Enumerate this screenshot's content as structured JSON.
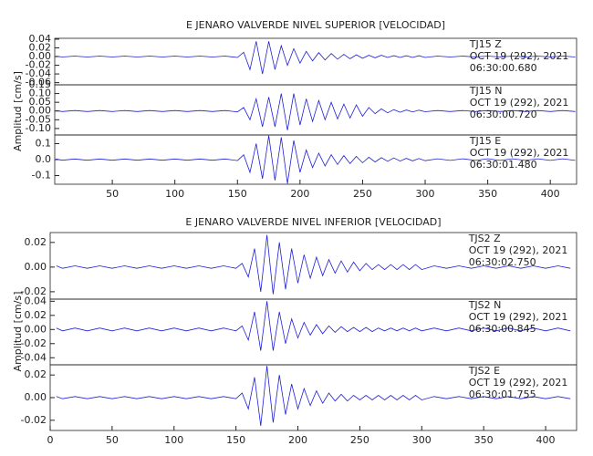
{
  "chart_data": [
    {
      "type": "line",
      "title": "E JENARO VALVERDE NIVEL SUPERIOR [VELOCIDAD]",
      "y_label": "Amplitud [cm/s]",
      "color": "#1f1fd8",
      "xlim": [
        4,
        421
      ],
      "xticks": [
        50,
        100,
        150,
        200,
        250,
        300,
        350,
        400
      ],
      "x": [
        5,
        10,
        20,
        30,
        40,
        50,
        60,
        70,
        80,
        90,
        100,
        110,
        120,
        130,
        140,
        150,
        155,
        160,
        165,
        170,
        175,
        180,
        185,
        190,
        195,
        200,
        205,
        210,
        215,
        220,
        225,
        230,
        235,
        240,
        245,
        250,
        255,
        260,
        265,
        270,
        275,
        280,
        285,
        290,
        295,
        300,
        310,
        320,
        330,
        340,
        350,
        360,
        370,
        380,
        390,
        400,
        410,
        420
      ],
      "panels": [
        {
          "station": "TJ15   Z",
          "date": "OCT 19 (292), 2021",
          "time": "06:30:00.680",
          "ylim": [
            -0.065,
            0.042
          ],
          "yticks": [
            -0.06,
            -0.04,
            -0.02,
            {
              "value": 0,
              "label": "0.00"
            },
            0.02,
            0.04
          ],
          "values": [
            0.001,
            -0.001,
            0.001,
            -0.001,
            0.001,
            -0.001,
            0.001,
            -0.001,
            0.001,
            -0.001,
            0.001,
            -0.001,
            0.001,
            -0.001,
            0.001,
            -0.002,
            0.01,
            -0.03,
            0.035,
            -0.04,
            0.035,
            -0.03,
            0.025,
            -0.02,
            0.018,
            -0.015,
            0.012,
            -0.01,
            0.009,
            -0.008,
            0.007,
            -0.006,
            0.005,
            -0.005,
            0.004,
            -0.004,
            0.003,
            -0.003,
            0.003,
            -0.002,
            0.002,
            -0.002,
            0.002,
            -0.002,
            0.002,
            -0.002,
            0.001,
            -0.001,
            0.001,
            -0.001,
            0.001,
            -0.001,
            0.001,
            -0.001,
            0.001,
            -0.001,
            0.001,
            -0.001
          ]
        },
        {
          "station": "TJ15   N",
          "date": "OCT 19 (292), 2021",
          "time": "06:30:00.720",
          "ylim": [
            -0.137,
            0.15
          ],
          "yticks": [
            {
              "value": -0.1,
              "label": "-0.10"
            },
            -0.05,
            {
              "value": 0,
              "label": "0.00"
            },
            0.05,
            {
              "value": 0.1,
              "label": "0.10"
            },
            0.15
          ],
          "values": [
            0.003,
            -0.003,
            0.003,
            -0.003,
            0.003,
            -0.003,
            0.003,
            -0.003,
            0.003,
            -0.003,
            0.003,
            -0.003,
            0.003,
            -0.003,
            0.003,
            -0.005,
            0.02,
            -0.05,
            0.07,
            -0.09,
            0.08,
            -0.09,
            0.1,
            -0.11,
            0.1,
            -0.08,
            0.07,
            -0.06,
            0.06,
            -0.05,
            0.05,
            -0.045,
            0.04,
            -0.04,
            0.035,
            -0.03,
            0.02,
            -0.015,
            0.012,
            -0.01,
            0.008,
            -0.007,
            0.006,
            -0.005,
            0.005,
            -0.004,
            0.003,
            -0.003,
            0.003,
            -0.003,
            0.003,
            -0.003,
            0.003,
            -0.003,
            0.003,
            -0.003,
            0.003,
            -0.003
          ]
        },
        {
          "station": "TJ15   E",
          "date": "OCT 19 (292), 2021",
          "time": "06:30:01.480",
          "ylim": [
            -0.154,
            0.154
          ],
          "yticks": [
            -0.1,
            {
              "value": 0,
              "label": "0.0"
            },
            0.1
          ],
          "values": [
            0.004,
            -0.004,
            0.004,
            -0.004,
            0.004,
            -0.004,
            0.004,
            -0.004,
            0.004,
            -0.004,
            0.004,
            -0.004,
            0.004,
            -0.004,
            0.004,
            -0.006,
            0.03,
            -0.08,
            0.1,
            -0.12,
            0.15,
            -0.13,
            0.14,
            -0.15,
            0.12,
            -0.08,
            0.06,
            -0.05,
            0.04,
            -0.04,
            0.03,
            -0.03,
            0.025,
            -0.025,
            0.02,
            -0.02,
            0.015,
            -0.015,
            0.012,
            -0.01,
            0.01,
            -0.009,
            0.008,
            -0.008,
            0.007,
            -0.007,
            0.005,
            -0.005,
            0.005,
            -0.005,
            0.005,
            -0.005,
            0.005,
            -0.005,
            0.005,
            -0.005,
            0.005,
            -0.005
          ]
        }
      ]
    },
    {
      "type": "line",
      "title": "E JENARO VALVERDE NIVEL INFERIOR [VELOCIDAD]",
      "y_label": "Amplitud [cm/s]",
      "color": "#1f1fd8",
      "xlim": [
        0,
        425
      ],
      "xticks": [
        0,
        50,
        100,
        150,
        200,
        250,
        300,
        350,
        400
      ],
      "x": [
        5,
        10,
        20,
        30,
        40,
        50,
        60,
        70,
        80,
        90,
        100,
        110,
        120,
        130,
        140,
        150,
        155,
        160,
        165,
        170,
        175,
        180,
        185,
        190,
        195,
        200,
        205,
        210,
        215,
        220,
        225,
        230,
        235,
        240,
        245,
        250,
        255,
        260,
        265,
        270,
        275,
        280,
        285,
        290,
        295,
        300,
        310,
        320,
        330,
        340,
        350,
        360,
        370,
        380,
        390,
        400,
        410,
        420
      ],
      "panels": [
        {
          "station": "TJS2   Z",
          "date": "OCT 19 (292), 2021",
          "time": "06:30:02.750",
          "ylim": [
            -0.026,
            0.028
          ],
          "yticks": [
            -0.02,
            {
              "value": 0,
              "label": "0.00"
            },
            0.02
          ],
          "values": [
            0.001,
            -0.001,
            0.001,
            -0.001,
            0.001,
            -0.001,
            0.001,
            -0.001,
            0.001,
            -0.001,
            0.001,
            -0.001,
            0.001,
            -0.001,
            0.001,
            -0.001,
            0.003,
            -0.008,
            0.015,
            -0.02,
            0.026,
            -0.022,
            0.02,
            -0.018,
            0.015,
            -0.013,
            0.01,
            -0.009,
            0.008,
            -0.007,
            0.006,
            -0.005,
            0.005,
            -0.004,
            0.004,
            -0.003,
            0.003,
            -0.002,
            0.002,
            -0.002,
            0.002,
            -0.002,
            0.002,
            -0.002,
            0.002,
            -0.002,
            0.001,
            -0.001,
            0.001,
            -0.001,
            0.001,
            -0.001,
            0.001,
            -0.001,
            0.001,
            -0.001,
            0.001,
            -0.001
          ]
        },
        {
          "station": "TJS2   N",
          "date": "OCT 19 (292), 2021",
          "time": "06:30:00.845",
          "ylim": [
            -0.05,
            0.043
          ],
          "yticks": [
            -0.04,
            -0.02,
            {
              "value": 0,
              "label": "0.00"
            },
            0.02,
            0.04
          ],
          "values": [
            0.002,
            -0.002,
            0.002,
            -0.002,
            0.002,
            -0.002,
            0.002,
            -0.002,
            0.002,
            -0.002,
            0.002,
            -0.002,
            0.002,
            -0.002,
            0.002,
            -0.002,
            0.005,
            -0.015,
            0.025,
            -0.03,
            0.04,
            -0.03,
            0.025,
            -0.02,
            0.015,
            -0.012,
            0.01,
            -0.008,
            0.007,
            -0.006,
            0.005,
            -0.004,
            0.004,
            -0.003,
            0.003,
            -0.003,
            0.003,
            -0.003,
            0.002,
            -0.002,
            0.002,
            -0.002,
            0.002,
            -0.002,
            0.002,
            -0.002,
            0.002,
            -0.002,
            0.002,
            -0.002,
            0.002,
            -0.002,
            0.002,
            -0.002,
            0.002,
            -0.002,
            0.002,
            -0.002
          ]
        },
        {
          "station": "TJS2   E",
          "date": "OCT 19 (292), 2021",
          "time": "06:30:01.755",
          "ylim": [
            -0.029,
            0.029
          ],
          "yticks": [
            -0.02,
            {
              "value": 0,
              "label": "0.00"
            },
            0.02
          ],
          "values": [
            0.001,
            -0.001,
            0.001,
            -0.001,
            0.001,
            -0.001,
            0.001,
            -0.001,
            0.001,
            -0.001,
            0.001,
            -0.001,
            0.001,
            -0.001,
            0.001,
            -0.001,
            0.004,
            -0.01,
            0.018,
            -0.025,
            0.028,
            -0.022,
            0.02,
            -0.015,
            0.012,
            -0.01,
            0.008,
            -0.007,
            0.006,
            -0.005,
            0.004,
            -0.003,
            0.003,
            -0.003,
            0.002,
            -0.002,
            0.002,
            -0.002,
            0.002,
            -0.002,
            0.002,
            -0.002,
            0.002,
            -0.002,
            0.002,
            -0.002,
            0.001,
            -0.001,
            0.001,
            -0.001,
            0.001,
            -0.001,
            0.001,
            -0.001,
            0.001,
            -0.001,
            0.001,
            -0.001
          ]
        }
      ]
    }
  ]
}
